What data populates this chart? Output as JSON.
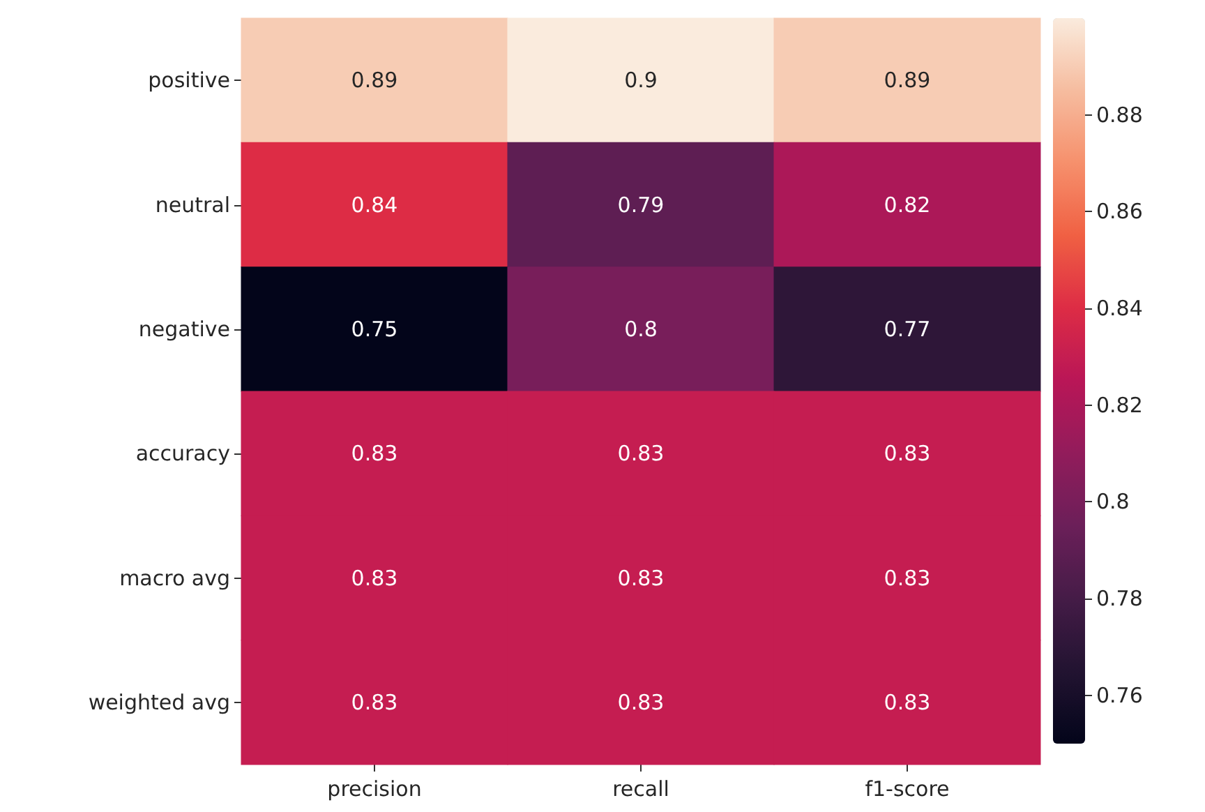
{
  "chart_data": {
    "type": "heatmap",
    "categories": [
      "precision",
      "recall",
      "f1-score"
    ],
    "y_categories": [
      "positive",
      "neutral",
      "negative",
      "accuracy",
      "macro avg",
      "weighted avg"
    ],
    "cells": [
      [
        0.89,
        0.9,
        0.89
      ],
      [
        0.84,
        0.79,
        0.82
      ],
      [
        0.75,
        0.8,
        0.77
      ],
      [
        0.83,
        0.83,
        0.83
      ],
      [
        0.83,
        0.83,
        0.83
      ],
      [
        0.83,
        0.83,
        0.83
      ]
    ],
    "data_labels": true,
    "clim": [
      0.75,
      0.9
    ],
    "cticks": [
      0.76,
      0.78,
      0.8,
      0.82,
      0.84,
      0.86,
      0.88
    ]
  }
}
